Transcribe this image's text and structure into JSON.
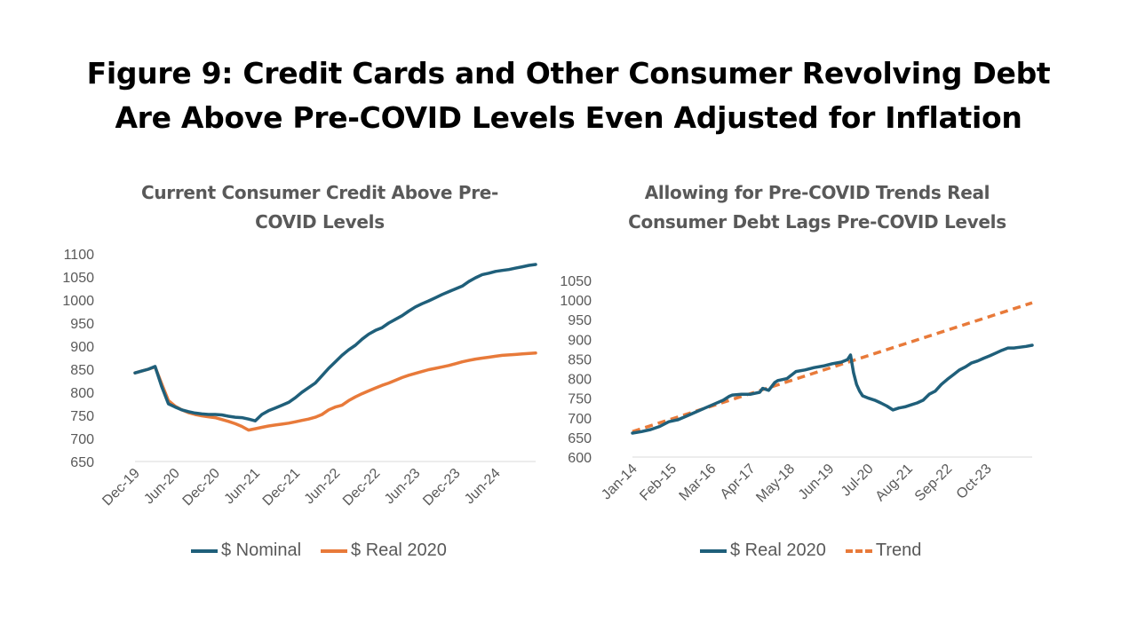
{
  "title": {
    "line1": "Figure 9: Credit Cards and Other Consumer Revolving Debt",
    "line2": "Are Above Pre-COVID Levels Even Adjusted for Inflation"
  },
  "colors": {
    "nominal": "#1F5F7A",
    "real": "#E87A3A",
    "axis_text": "#595959",
    "axis_line": "#D9D9D9"
  },
  "chart_data": [
    {
      "type": "line",
      "title_line1": "Current Consumer Credit Above Pre-",
      "title_line2": "COVID Levels",
      "ylim": [
        650,
        1100
      ],
      "yticks": [
        650,
        700,
        750,
        800,
        850,
        900,
        950,
        1000,
        1050,
        1100
      ],
      "xlim": [
        0,
        60
      ],
      "xticks": [
        {
          "label": "Dec-19",
          "x": 0
        },
        {
          "label": "Jun-20",
          "x": 6
        },
        {
          "label": "Dec-20",
          "x": 12
        },
        {
          "label": "Jun-21",
          "x": 18
        },
        {
          "label": "Dec-21",
          "x": 24
        },
        {
          "label": "Jun-22",
          "x": 30
        },
        {
          "label": "Dec-22",
          "x": 36
        },
        {
          "label": "Jun-23",
          "x": 42
        },
        {
          "label": "Dec-23",
          "x": 48
        },
        {
          "label": "Jun-24",
          "x": 54
        }
      ],
      "legend": "bottom",
      "series": [
        {
          "name": "$ Nominal",
          "style": "solid",
          "color_key": "nominal",
          "x": [
            0,
            1,
            2,
            3,
            4,
            5,
            6,
            7,
            8,
            9,
            10,
            11,
            12,
            13,
            14,
            15,
            16,
            17,
            18,
            19,
            20,
            21,
            22,
            23,
            24,
            25,
            26,
            27,
            28,
            29,
            30,
            31,
            32,
            33,
            34,
            35,
            36,
            37,
            38,
            39,
            40,
            41,
            42,
            43,
            44,
            45,
            46,
            47,
            48,
            49,
            50,
            51,
            52,
            53,
            54,
            55,
            56,
            57,
            58,
            59,
            60
          ],
          "values": [
            842,
            846,
            850,
            856,
            812,
            775,
            768,
            762,
            758,
            755,
            753,
            752,
            752,
            751,
            748,
            746,
            745,
            742,
            738,
            752,
            760,
            766,
            772,
            778,
            788,
            800,
            810,
            820,
            836,
            852,
            866,
            880,
            892,
            902,
            915,
            926,
            934,
            940,
            950,
            958,
            966,
            976,
            985,
            992,
            998,
            1005,
            1012,
            1018,
            1024,
            1030,
            1040,
            1048,
            1055,
            1058,
            1062,
            1064,
            1066,
            1069,
            1072,
            1075,
            1077
          ]
        },
        {
          "name": "$ Real 2020",
          "style": "solid",
          "color_key": "real",
          "x": [
            0,
            1,
            2,
            3,
            4,
            5,
            6,
            7,
            8,
            9,
            10,
            11,
            12,
            13,
            14,
            15,
            16,
            17,
            18,
            19,
            20,
            21,
            22,
            23,
            24,
            25,
            26,
            27,
            28,
            29,
            30,
            31,
            32,
            33,
            34,
            35,
            36,
            37,
            38,
            39,
            40,
            41,
            42,
            43,
            44,
            45,
            46,
            47,
            48,
            49,
            50,
            51,
            52,
            53,
            54,
            55,
            56,
            57,
            58,
            59,
            60
          ],
          "values": [
            842,
            846,
            850,
            855,
            818,
            782,
            770,
            762,
            756,
            752,
            749,
            747,
            745,
            741,
            737,
            732,
            726,
            718,
            721,
            724,
            727,
            729,
            731,
            733,
            736,
            739,
            742,
            746,
            752,
            762,
            768,
            772,
            782,
            790,
            797,
            803,
            809,
            815,
            820,
            826,
            832,
            837,
            841,
            845,
            849,
            852,
            855,
            858,
            862,
            866,
            869,
            872,
            874,
            876,
            878,
            880,
            881,
            882,
            883,
            884,
            885
          ]
        }
      ]
    },
    {
      "type": "line",
      "title_line1": "Allowing for Pre-COVID Trends Real",
      "title_line2": "Consumer Debt Lags Pre-COVID Levels",
      "ylim": [
        600,
        1050
      ],
      "yticks": [
        600,
        650,
        700,
        750,
        800,
        850,
        900,
        950,
        1000,
        1050
      ],
      "xlim": [
        0,
        132
      ],
      "xticks": [
        {
          "label": "Jan-14",
          "x": 0
        },
        {
          "label": "Feb-15",
          "x": 13
        },
        {
          "label": "Mar-16",
          "x": 26
        },
        {
          "label": "Apr-17",
          "x": 39
        },
        {
          "label": "May-18",
          "x": 52
        },
        {
          "label": "Jun-19",
          "x": 65
        },
        {
          "label": "Jul-20",
          "x": 78
        },
        {
          "label": "Aug-21",
          "x": 91
        },
        {
          "label": "Sep-22",
          "x": 104
        },
        {
          "label": "Oct-23",
          "x": 117
        }
      ],
      "legend": "bottom",
      "series": [
        {
          "name": "$ Real 2020",
          "style": "solid",
          "color_key": "nominal",
          "x": [
            0,
            3,
            6,
            9,
            12,
            15,
            18,
            21,
            24,
            27,
            30,
            32,
            33,
            36,
            39,
            42,
            43,
            45,
            47,
            48,
            51,
            54,
            57,
            60,
            63,
            66,
            69,
            71,
            72,
            73,
            74,
            75,
            76,
            78,
            80,
            82,
            84,
            86,
            88,
            90,
            92,
            94,
            96,
            98,
            100,
            102,
            104,
            106,
            108,
            110,
            112,
            114,
            116,
            118,
            120,
            122,
            124,
            126,
            128,
            130,
            132
          ],
          "values": [
            661,
            665,
            670,
            678,
            690,
            695,
            705,
            715,
            725,
            735,
            745,
            755,
            758,
            760,
            760,
            765,
            775,
            770,
            790,
            795,
            800,
            818,
            822,
            828,
            832,
            838,
            842,
            848,
            860,
            815,
            785,
            768,
            756,
            750,
            745,
            738,
            730,
            720,
            725,
            728,
            733,
            738,
            745,
            760,
            768,
            785,
            798,
            810,
            822,
            830,
            840,
            845,
            852,
            858,
            865,
            872,
            878,
            878,
            880,
            882,
            885
          ]
        },
        {
          "name": "Trend",
          "style": "dashed",
          "color_key": "real",
          "x": [
            0,
            132
          ],
          "values": [
            665,
            993
          ]
        }
      ]
    }
  ]
}
